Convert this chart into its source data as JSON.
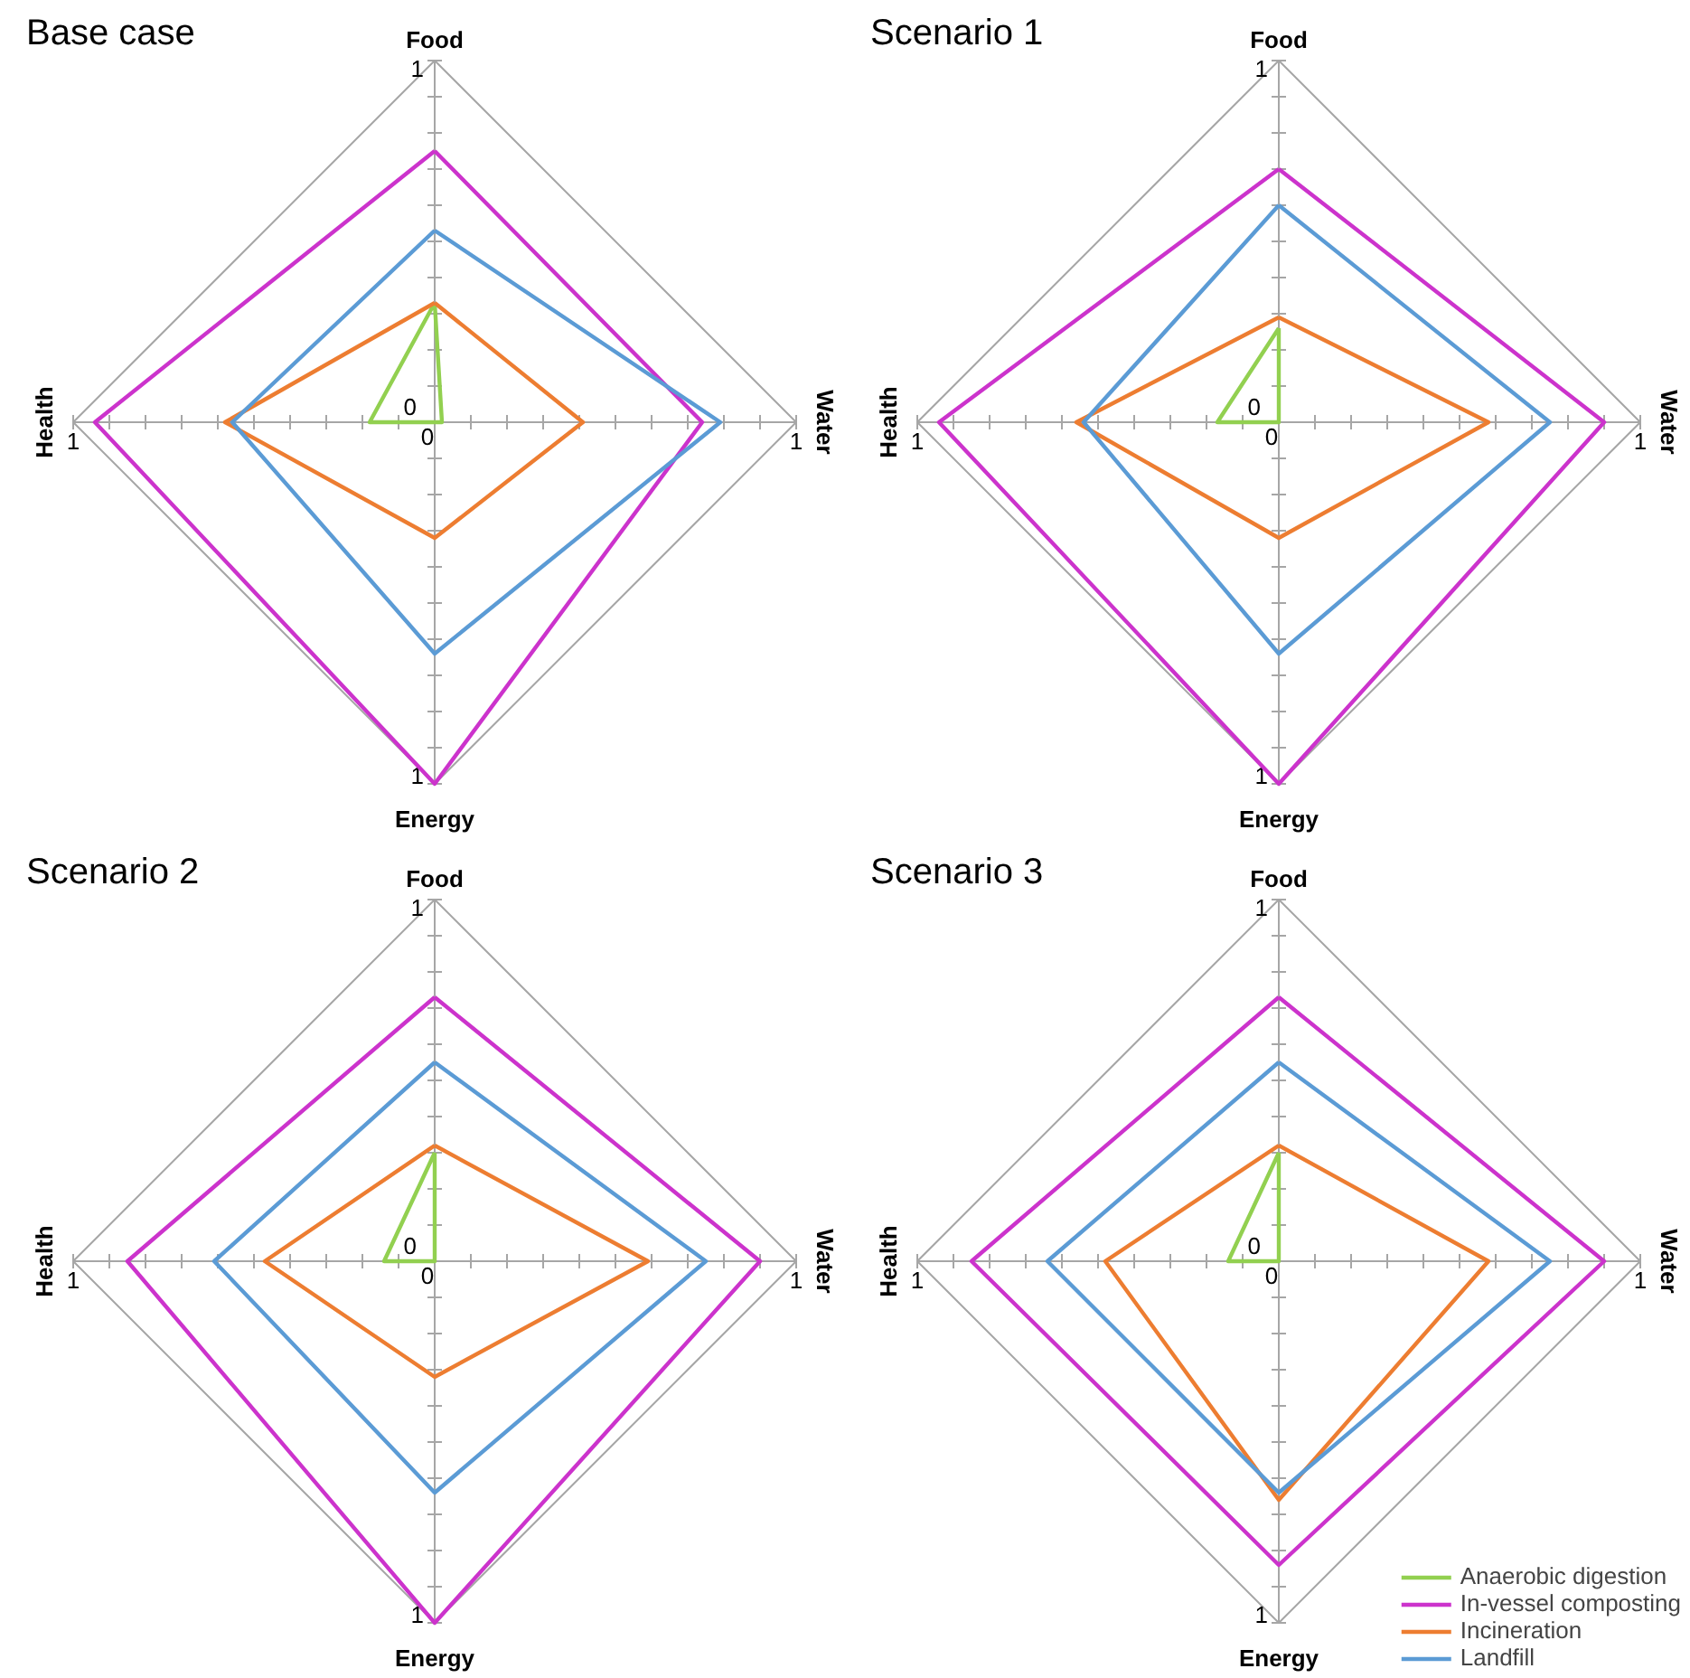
{
  "chart_data": [
    {
      "type": "radar",
      "title": "Base case",
      "categories": [
        "Food",
        "Water",
        "Energy",
        "Health"
      ],
      "ylim": [
        0,
        1
      ],
      "yticks": [
        0,
        1
      ],
      "annotations": [
        "1",
        "1",
        "1",
        "0"
      ],
      "series": [
        {
          "color": "#92d050",
          "values": [
            0.33,
            0.02,
            0,
            0.18
          ]
        },
        {
          "color": "#cc33cc",
          "values": [
            0.75,
            0.74,
            1.0,
            0.94
          ]
        },
        {
          "color": "#ed7d31",
          "values": [
            0.33,
            0.41,
            0.32,
            0.58
          ]
        },
        {
          "color": "#5b9bd5",
          "values": [
            0.53,
            0.79,
            0.64,
            0.56
          ]
        }
      ]
    },
    {
      "type": "radar",
      "title": "Scenario 1",
      "categories": [
        "Food",
        "Water",
        "Energy",
        "Health"
      ],
      "ylim": [
        0,
        1
      ],
      "yticks": [
        0,
        1
      ],
      "annotations": [
        "1",
        "1",
        "1",
        "0"
      ],
      "series": [
        {
          "color": "#92d050",
          "values": [
            0.26,
            0,
            0,
            0.17
          ]
        },
        {
          "color": "#cc33cc",
          "values": [
            0.7,
            0.9,
            1.0,
            0.94
          ]
        },
        {
          "color": "#ed7d31",
          "values": [
            0.29,
            0.58,
            0.32,
            0.56
          ]
        },
        {
          "color": "#5b9bd5",
          "values": [
            0.6,
            0.75,
            0.64,
            0.54
          ]
        }
      ]
    },
    {
      "type": "radar",
      "title": "Scenario 2",
      "categories": [
        "Food",
        "Water",
        "Energy",
        "Health"
      ],
      "ylim": [
        0,
        1
      ],
      "yticks": [
        0,
        1
      ],
      "annotations": [
        "1",
        "1",
        "1",
        "0"
      ],
      "series": [
        {
          "color": "#92d050",
          "values": [
            0.3,
            0,
            0,
            0.14
          ]
        },
        {
          "color": "#cc33cc",
          "values": [
            0.73,
            0.9,
            1.0,
            0.85
          ]
        },
        {
          "color": "#ed7d31",
          "values": [
            0.32,
            0.59,
            0.32,
            0.47
          ]
        },
        {
          "color": "#5b9bd5",
          "values": [
            0.55,
            0.75,
            0.64,
            0.61
          ]
        }
      ]
    },
    {
      "type": "radar",
      "title": "Scenario 3",
      "categories": [
        "Food",
        "Water",
        "Energy",
        "Health"
      ],
      "ylim": [
        0,
        1
      ],
      "yticks": [
        0,
        1
      ],
      "legend": "bottom right",
      "annotations": [
        "1",
        "1",
        "1",
        "0"
      ],
      "series": [
        {
          "name": "Anaerobic digestion",
          "color": "#92d050",
          "values": [
            0.3,
            0,
            0,
            0.14
          ]
        },
        {
          "name": "In-vessel composting",
          "color": "#cc33cc",
          "values": [
            0.73,
            0.9,
            0.84,
            0.85
          ]
        },
        {
          "name": "Incineration",
          "color": "#ed7d31",
          "values": [
            0.32,
            0.58,
            0.66,
            0.48
          ]
        },
        {
          "name": "Landfill",
          "color": "#5b9bd5",
          "values": [
            0.55,
            0.75,
            0.64,
            0.64
          ]
        }
      ]
    }
  ]
}
